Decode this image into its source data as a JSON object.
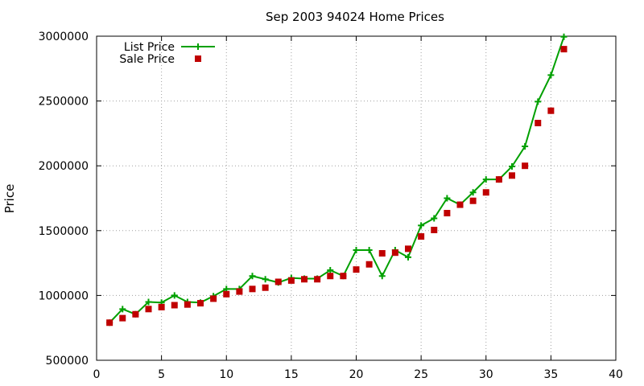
{
  "chart_data": {
    "type": "line",
    "title": "Sep 2003 94024 Home Prices",
    "xlabel": "",
    "ylabel": "Price",
    "xlim": [
      0,
      40
    ],
    "ylim": [
      500000,
      3000000
    ],
    "x_ticks": [
      0,
      5,
      10,
      15,
      20,
      25,
      30,
      35,
      40
    ],
    "y_ticks": [
      500000,
      1000000,
      1500000,
      2000000,
      2500000,
      3000000
    ],
    "x_tick_labels": [
      "0",
      "5",
      "10",
      "15",
      "20",
      "25",
      "30",
      "35",
      "40"
    ],
    "y_tick_labels": [
      "500000",
      "1000000",
      "1500000",
      "2000000",
      "2500000",
      "3000000"
    ],
    "grid": true,
    "legend_position": "top-left",
    "x": [
      1,
      2,
      3,
      4,
      5,
      6,
      7,
      8,
      9,
      10,
      11,
      12,
      13,
      14,
      15,
      16,
      17,
      18,
      19,
      20,
      21,
      22,
      23,
      24,
      25,
      26,
      27,
      28,
      29,
      30,
      31,
      32,
      33,
      34,
      35,
      36
    ],
    "series": [
      {
        "name": "List Price",
        "style": "linespoints",
        "color": "#00a000",
        "values": [
          790000,
          895000,
          855000,
          950000,
          945000,
          1000000,
          950000,
          945000,
          995000,
          1050000,
          1050000,
          1150000,
          1125000,
          1100000,
          1135000,
          1130000,
          1130000,
          1195000,
          1150000,
          1350000,
          1350000,
          1150000,
          1350000,
          1295000,
          1540000,
          1595000,
          1750000,
          1700000,
          1795000,
          1895000,
          1895000,
          1995000,
          2150000,
          2495000,
          2700000,
          2995000
        ]
      },
      {
        "name": "Sale Price",
        "style": "points",
        "color": "#c00000",
        "values": [
          790000,
          825000,
          855000,
          895000,
          910000,
          925000,
          930000,
          940000,
          975000,
          1010000,
          1030000,
          1050000,
          1060000,
          1105000,
          1115000,
          1125000,
          1125000,
          1150000,
          1150000,
          1200000,
          1240000,
          1325000,
          1330000,
          1360000,
          1455000,
          1505000,
          1635000,
          1700000,
          1730000,
          1795000,
          1895000,
          1925000,
          2000000,
          2330000,
          2425000,
          2900000
        ]
      }
    ]
  }
}
